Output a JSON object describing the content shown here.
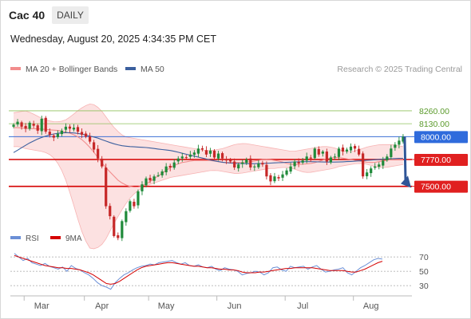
{
  "header": {
    "symbol": "Cac 40",
    "timeframe": "DAILY",
    "datetime": "Wednesday, August 20, 2025 4:34:35 PM CET"
  },
  "legend": {
    "ma20_label": "MA 20 + Bollinger Bands",
    "ma50_label": "MA 50",
    "research": "Research © 2025 Trading Central"
  },
  "rsi_legend": {
    "rsi_label": "RSI",
    "ma_label": "9MA"
  },
  "colors": {
    "ma20": "#f28c8c",
    "ma50": "#3b5f9e",
    "bands_fill": "#fcdcdc",
    "up_candle": "#1f8a3a",
    "down_candle": "#c62828",
    "resistance_line": "#3b6fd4",
    "support_line": "#d50000",
    "target_line": "#8fc15d",
    "rsi_line": "#6b8fd6",
    "rsi_ma_line": "#d50000",
    "arrow": "#2f5597"
  },
  "chart_data": [
    {
      "type": "candlestick",
      "name": "price",
      "x_unit": "trading day index (0 = first bar, early March)",
      "x_labels": [
        {
          "label": "Mar",
          "day": 7
        },
        {
          "label": "Apr",
          "day": 22
        },
        {
          "label": "May",
          "day": 38
        },
        {
          "label": "Jun",
          "day": 55
        },
        {
          "label": "Jul",
          "day": 72
        },
        {
          "label": "Aug",
          "day": 89
        }
      ],
      "ylim": [
        7080,
        8420
      ],
      "levels": [
        {
          "value": 8260,
          "label": "8260.00",
          "kind": "target"
        },
        {
          "value": 8130,
          "label": "8130.00",
          "kind": "target"
        },
        {
          "value": 8000,
          "label": "8000.00",
          "kind": "pivot"
        },
        {
          "value": 7770,
          "label": "7770.00",
          "kind": "support"
        },
        {
          "value": 7500,
          "label": "7500.00",
          "kind": "support"
        }
      ],
      "close": [
        8120,
        8150,
        8100,
        8080,
        8140,
        8110,
        8060,
        8180,
        8050,
        8020,
        7990,
        8030,
        8060,
        8100,
        8080,
        8090,
        8050,
        8020,
        8000,
        7950,
        7870,
        7780,
        7700,
        7300,
        7200,
        7000,
        6980,
        7150,
        7250,
        7350,
        7300,
        7450,
        7520,
        7580,
        7560,
        7600,
        7610,
        7650,
        7700,
        7690,
        7740,
        7780,
        7800,
        7790,
        7820,
        7840,
        7880,
        7870,
        7820,
        7860,
        7790,
        7830,
        7780,
        7760,
        7750,
        7690,
        7720,
        7740,
        7770,
        7690,
        7700,
        7730,
        7720,
        7600,
        7550,
        7600,
        7580,
        7620,
        7660,
        7700,
        7750,
        7730,
        7760,
        7800,
        7780,
        7880,
        7820,
        7850,
        7750,
        7790,
        7800,
        7880,
        7850,
        7870,
        7900,
        7880,
        7820,
        7600,
        7640,
        7680,
        7700,
        7720,
        7760,
        7800,
        7880,
        7920,
        7960,
        8000
      ],
      "bollinger_middle_ma20": [
        8090,
        8090,
        8085,
        8080,
        8080,
        8075,
        8070,
        8065,
        8060,
        8045,
        8030,
        8000,
        7960,
        7900,
        7830,
        7750,
        7680,
        7620,
        7560,
        7520,
        7500,
        7490,
        7500,
        7530,
        7570,
        7610,
        7650,
        7690,
        7720,
        7740,
        7750,
        7760,
        7760,
        7760,
        7760,
        7750,
        7740,
        7740,
        7740,
        7740,
        7745,
        7750,
        7760,
        7770,
        7770,
        7760,
        7750,
        7730,
        7720,
        7720,
        7725,
        7730,
        7740,
        7760,
        7780,
        7790,
        7790,
        7780,
        7770,
        7760,
        7750,
        7740,
        7740,
        7750,
        7760,
        7770,
        7770,
        7770
      ],
      "bollinger_upper": [
        8240,
        8250,
        8260,
        8240,
        8210,
        8180,
        8160,
        8150,
        8150,
        8170,
        8210,
        8260,
        8300,
        8330,
        8320,
        8270,
        8190,
        8110,
        8050,
        8000,
        7990,
        7980,
        7970,
        7960,
        7950,
        7940,
        7930,
        7920,
        7910,
        7900,
        7890,
        7880,
        7870,
        7860,
        7860,
        7870,
        7880,
        7900,
        7920,
        7930,
        7930,
        7920,
        7910,
        7900,
        7890,
        7880,
        7870,
        7860,
        7850,
        7860,
        7870,
        7880,
        7890,
        7900,
        7900,
        7890,
        7870,
        7850,
        7850,
        7860,
        7880,
        7900,
        7910,
        7920,
        7920,
        7920,
        7910,
        7900
      ],
      "bollinger_lower": [
        7900,
        7900,
        7880,
        7870,
        7860,
        7850,
        7830,
        7780,
        7700,
        7560,
        7380,
        7180,
        7000,
        6880,
        6870,
        6900,
        6980,
        7100,
        7200,
        7300,
        7380,
        7440,
        7480,
        7510,
        7530,
        7550,
        7570,
        7590,
        7600,
        7610,
        7620,
        7630,
        7640,
        7650,
        7660,
        7660,
        7650,
        7640,
        7630,
        7630,
        7640,
        7650,
        7660,
        7670,
        7680,
        7680,
        7690,
        7690,
        7680,
        7660,
        7640,
        7640,
        7650,
        7660,
        7670,
        7680,
        7700,
        7710,
        7720,
        7730,
        7730,
        7720,
        7700,
        7690,
        7690,
        7700,
        7710,
        7720
      ],
      "ma50": [
        7840,
        7890,
        7940,
        7980,
        8010,
        8030,
        8040,
        8040,
        8030,
        8010,
        7990,
        7960,
        7930,
        7910,
        7900,
        7895,
        7890,
        7880,
        7870,
        7860,
        7840,
        7820,
        7800,
        7780,
        7760,
        7745,
        7735,
        7730,
        7728,
        7728,
        7730,
        7734,
        7738,
        7742,
        7746,
        7748,
        7748,
        7746,
        7744,
        7744,
        7748,
        7752,
        7758,
        7764,
        7770,
        7776,
        7780,
        7782
      ]
    },
    {
      "type": "line",
      "name": "RSI",
      "ylim": [
        18,
        88
      ],
      "y_ticks": [
        70,
        50,
        30
      ],
      "rsi": [
        75,
        70,
        65,
        68,
        62,
        60,
        58,
        61,
        57,
        55,
        53,
        56,
        50,
        58,
        54,
        52,
        48,
        45,
        40,
        34,
        30,
        28,
        25,
        34,
        40,
        45,
        48,
        52,
        55,
        57,
        58,
        60,
        59,
        62,
        63,
        64,
        65,
        62,
        60,
        62,
        58,
        57,
        59,
        56,
        55,
        57,
        53,
        51,
        55,
        53,
        52,
        50,
        45,
        47,
        48,
        50,
        49,
        45,
        48,
        55,
        56,
        52,
        50,
        57,
        55,
        56,
        57,
        53,
        56,
        58,
        53,
        49,
        50,
        52,
        53,
        55,
        48,
        45,
        50,
        55,
        58,
        62,
        66,
        68,
        67
      ],
      "rsi_ma9": [
        72,
        70,
        68,
        66,
        64,
        62,
        60,
        58,
        57,
        56,
        55,
        55,
        54,
        54,
        53,
        52,
        50,
        48,
        45,
        41,
        37,
        33,
        32,
        33,
        36,
        40,
        44,
        48,
        52,
        55,
        57,
        58,
        59,
        60,
        61,
        62,
        62,
        61,
        60,
        59,
        58,
        57,
        57,
        56,
        55,
        55,
        54,
        53,
        53,
        52,
        52,
        51,
        49,
        48,
        48,
        48,
        49,
        49,
        50,
        51,
        52,
        53,
        54,
        54,
        55,
        55,
        55,
        55,
        55,
        54,
        53,
        52,
        51,
        51,
        51,
        51,
        50,
        49,
        49,
        51,
        53,
        56,
        59,
        62,
        64
      ]
    }
  ]
}
